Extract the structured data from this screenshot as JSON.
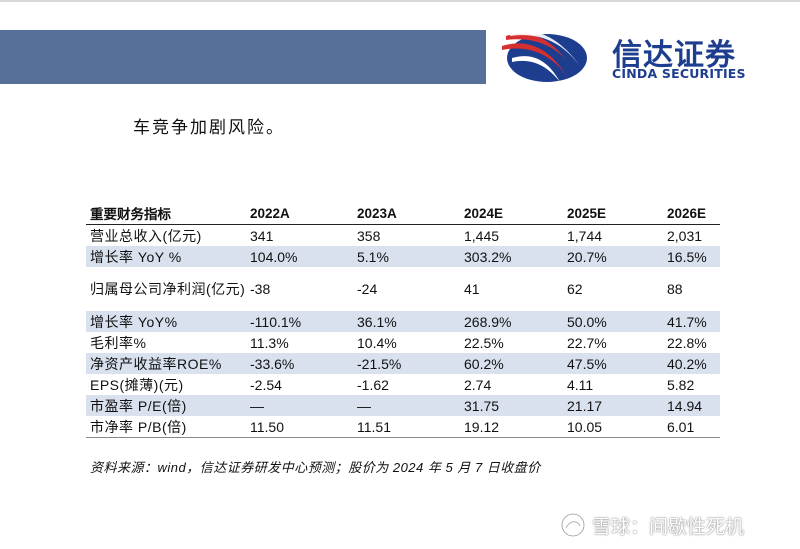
{
  "brand": {
    "name_cn": "信达证券",
    "name_en": "CINDA SECURITIES",
    "colors": {
      "navy": "#1d3d8f",
      "red": "#d62f2f",
      "band": "#56709a",
      "row_shade": "#d9e1ef"
    }
  },
  "intro_text": "车竞争加剧风险。",
  "table": {
    "columns": [
      "重要财务指标",
      "2022A",
      "2023A",
      "2024E",
      "2025E",
      "2026E"
    ],
    "rows": [
      {
        "label": "营业总收入(亿元)",
        "values": [
          "341",
          "358",
          "1,445",
          "1,744",
          "2,031"
        ]
      },
      {
        "label": "增长率 YoY %",
        "values": [
          "104.0%",
          "5.1%",
          "303.2%",
          "20.7%",
          "16.5%"
        ]
      },
      {
        "label": "归属母公司净利润(亿元)",
        "values": [
          "-38",
          "-24",
          "41",
          "62",
          "88"
        ]
      },
      {
        "label": "增长率 YoY%",
        "values": [
          "-110.1%",
          "36.1%",
          "268.9%",
          "50.0%",
          "41.7%"
        ]
      },
      {
        "label": "毛利率%",
        "values": [
          "11.3%",
          "10.4%",
          "22.5%",
          "22.7%",
          "22.8%"
        ]
      },
      {
        "label": "净资产收益率ROE%",
        "values": [
          "-33.6%",
          "-21.5%",
          "60.2%",
          "47.5%",
          "40.2%"
        ]
      },
      {
        "label": "EPS(摊薄)(元)",
        "values": [
          "-2.54",
          "-1.62",
          "2.74",
          "4.11",
          "5.82"
        ]
      },
      {
        "label": "市盈率 P/E(倍)",
        "values": [
          "—",
          "—",
          "31.75",
          "21.17",
          "14.94"
        ]
      },
      {
        "label": "市净率 P/B(倍)",
        "values": [
          "11.50",
          "11.51",
          "19.12",
          "10.05",
          "6.01"
        ]
      }
    ]
  },
  "source_note": "资料来源：wind，信达证券研发中心预测；股价为 2024 年 5 月 7 日收盘价",
  "watermark": {
    "icon": "xueqiu-snowball-icon",
    "text": "雪球：间歇性死机"
  }
}
